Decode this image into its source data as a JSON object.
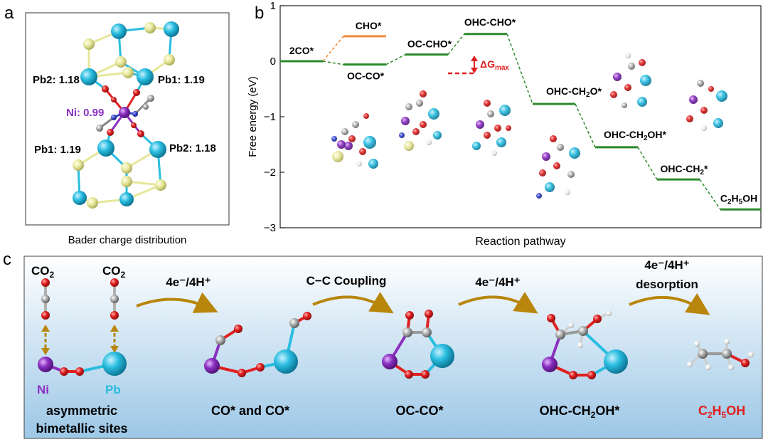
{
  "colors": {
    "pb": "#29bde0",
    "s": "#e6e69a",
    "ni": "#8a2fc0",
    "o": "#e02020",
    "c": "#9a9a9a",
    "h": "#eeeeee",
    "n": "#3344cc",
    "green": "#2a8a2a",
    "orange": "#f08a3c",
    "red": "#e02020",
    "arrow": "#b8860b",
    "panel_c_top": "#ffffff",
    "panel_c_bottom": "#9cc7e6"
  },
  "panel_a": {
    "label": "a",
    "caption": "Bader charge distribution",
    "charges": {
      "pb2_top": "Pb2: 1.18",
      "pb1_top": "Pb1: 1.19",
      "ni": "Ni: 0.99",
      "pb1_bottom": "Pb1: 1.19",
      "pb2_bottom": "Pb2: 1.18"
    }
  },
  "panel_b": {
    "label": "b",
    "ylabel": "Free energy (eV)",
    "xlabel": "Reaction pathway",
    "delta_g": "ΔG",
    "delta_g_sub": "max"
  },
  "chart_data": {
    "type": "energy_profile",
    "title": "",
    "xlabel": "Reaction pathway",
    "ylabel": "Free energy (eV)",
    "ylim": [
      -3,
      1
    ],
    "yticks": [
      1,
      0,
      -1,
      -2,
      -3
    ],
    "ytick_labels": [
      "1",
      "0",
      "−1",
      "−2",
      "−3"
    ],
    "states": [
      {
        "label": "2CO*",
        "value": 0.0,
        "step": 0,
        "color": "green"
      },
      {
        "label": "CHO*",
        "value": 0.45,
        "step": 1,
        "color": "orange"
      },
      {
        "label": "OC-CO*",
        "value": -0.06,
        "step": 1,
        "color": "green"
      },
      {
        "label": "OC-CHO*",
        "value": 0.12,
        "step": 2,
        "color": "green"
      },
      {
        "label": "OHC-CHO*",
        "value": 0.49,
        "step": 3,
        "color": "green"
      },
      {
        "label": "OHC-CH2O*",
        "value": -0.77,
        "step": 4,
        "color": "green"
      },
      {
        "label": "OHC-CH2OH*",
        "value": -1.55,
        "step": 5,
        "color": "green"
      },
      {
        "label": "OHC-CH2*",
        "value": -2.13,
        "step": 6,
        "color": "green"
      },
      {
        "label": "C2H5OH",
        "value": -2.67,
        "step": 7,
        "color": "green"
      }
    ],
    "connections": [
      {
        "from": "2CO*",
        "to": "CHO*",
        "color": "orange"
      },
      {
        "from": "2CO*",
        "to": "OC-CO*",
        "color": "green"
      },
      {
        "from": "OC-CO*",
        "to": "OC-CHO*",
        "color": "green"
      },
      {
        "from": "OC-CHO*",
        "to": "OHC-CHO*",
        "color": "green"
      },
      {
        "from": "OHC-CHO*",
        "to": "OHC-CH2O*",
        "color": "green"
      },
      {
        "from": "OHC-CH2O*",
        "to": "OHC-CH2OH*",
        "color": "green"
      },
      {
        "from": "OHC-CH2OH*",
        "to": "OHC-CH2*",
        "color": "green"
      },
      {
        "from": "OHC-CH2*",
        "to": "C2H5OH",
        "color": "green"
      }
    ],
    "annotation": {
      "text": "ΔGmax",
      "between": [
        "OC-CHO*",
        "OHC-CHO*"
      ]
    }
  },
  "panel_c": {
    "label": "c",
    "co2_left": "CO",
    "co2_left_sub": "2",
    "co2_right": "CO",
    "co2_right_sub": "2",
    "ni": "Ni",
    "pb": "Pb",
    "site_line1": "asymmetric",
    "site_line2": "bimetallic sites",
    "step1": "4e⁻/4H⁺",
    "step2": "C−C Coupling",
    "step3": "4e⁻/4H⁺",
    "step4_line1": "4e⁻/4H⁺",
    "step4_line2": "desorption",
    "stage1": "CO* and CO*",
    "stage2": "OC-CO*",
    "stage3_main": "OHC-CH",
    "stage3_sub": "2",
    "stage3_tail": "OH*",
    "product_a": "C",
    "product_a_sub": "2",
    "product_b": "H",
    "product_b_sub": "5",
    "product_c": "OH"
  }
}
